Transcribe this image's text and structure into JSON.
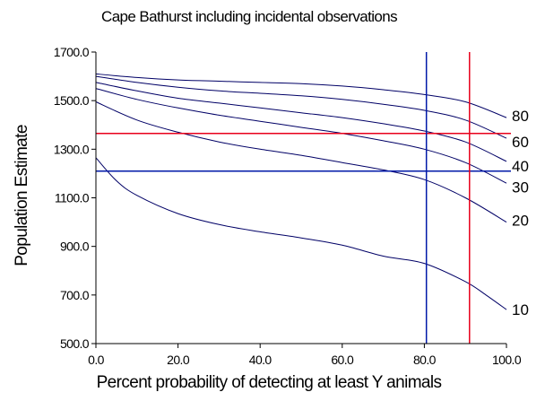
{
  "chart_data": {
    "type": "line",
    "title": "Cape Bathurst including incidental observations",
    "xlabel": "Percent probability of detecting at least Y animals",
    "ylabel": "Population Estimate",
    "xlim": [
      0,
      100
    ],
    "ylim": [
      500,
      1700
    ],
    "x_ticks": [
      "0.0",
      "20.0",
      "40.0",
      "60.0",
      "80.0",
      "100.0"
    ],
    "y_ticks": [
      "500.0",
      "700.0",
      "900.0",
      "1100.0",
      "1300.0",
      "1500.0",
      "1700.0"
    ],
    "grid": false,
    "series": [
      {
        "name": "10",
        "color": "#000066",
        "x": [
          0,
          5,
          10,
          20,
          30,
          40,
          50,
          60,
          70,
          80,
          90,
          95,
          100
        ],
        "y": [
          1265,
          1170,
          1110,
          1035,
          990,
          960,
          935,
          905,
          860,
          830,
          755,
          700,
          640
        ]
      },
      {
        "name": "20",
        "color": "#000066",
        "x": [
          0,
          10,
          20,
          30,
          40,
          50,
          60,
          70,
          80,
          90,
          100
        ],
        "y": [
          1495,
          1420,
          1370,
          1330,
          1300,
          1275,
          1245,
          1215,
          1175,
          1100,
          1000
        ]
      },
      {
        "name": "30",
        "color": "#000066",
        "x": [
          0,
          10,
          20,
          30,
          40,
          50,
          60,
          70,
          80,
          90,
          100
        ],
        "y": [
          1550,
          1505,
          1470,
          1440,
          1415,
          1390,
          1365,
          1335,
          1300,
          1245,
          1160
        ]
      },
      {
        "name": "40",
        "color": "#000066",
        "x": [
          0,
          10,
          20,
          30,
          40,
          50,
          60,
          70,
          80,
          90,
          100
        ],
        "y": [
          1575,
          1540,
          1510,
          1490,
          1470,
          1450,
          1430,
          1405,
          1375,
          1330,
          1250
        ]
      },
      {
        "name": "60",
        "color": "#000066",
        "x": [
          0,
          10,
          20,
          30,
          40,
          50,
          60,
          70,
          80,
          90,
          100
        ],
        "y": [
          1600,
          1575,
          1555,
          1540,
          1530,
          1520,
          1505,
          1485,
          1460,
          1420,
          1345
        ]
      },
      {
        "name": "80",
        "color": "#000066",
        "x": [
          0,
          10,
          20,
          30,
          40,
          50,
          60,
          70,
          80,
          90,
          100
        ],
        "y": [
          1610,
          1595,
          1585,
          1580,
          1575,
          1570,
          1560,
          1545,
          1525,
          1495,
          1430
        ]
      }
    ],
    "reference_lines": [
      {
        "orientation": "horizontal",
        "value": 1365,
        "color": "#e8001c"
      },
      {
        "orientation": "horizontal",
        "value": 1210,
        "color": "#0018a8"
      },
      {
        "orientation": "vertical",
        "value": 80.5,
        "color": "#0018a8"
      },
      {
        "orientation": "vertical",
        "value": 91,
        "color": "#e8001c"
      }
    ]
  }
}
